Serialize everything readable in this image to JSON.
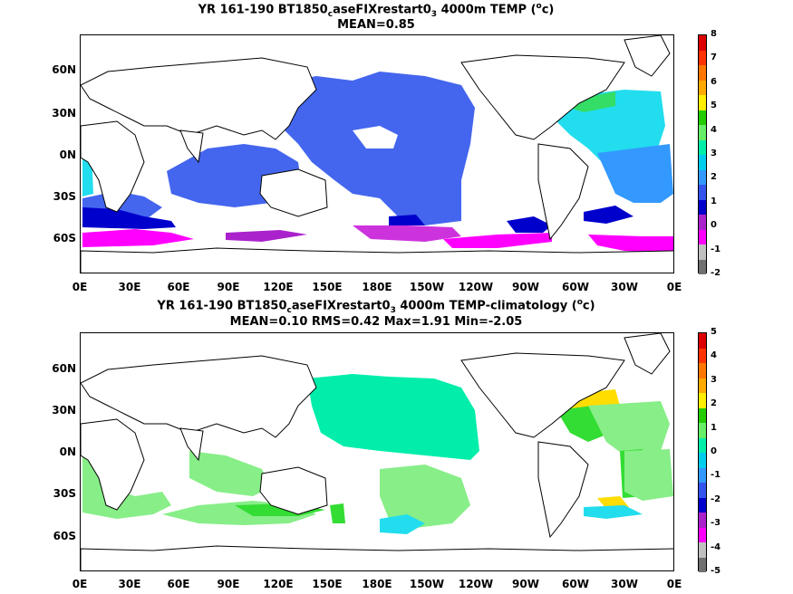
{
  "panels": [
    {
      "title_prefix": "YR 161-190 BT1850",
      "title_sub1": "c",
      "title_mid": "aseFIXrestart0",
      "title_sub2": "3",
      "title_suffix": " 4000m TEMP (",
      "title_sup": "o",
      "title_unit": "c)",
      "stats": "MEAN=0.85",
      "colorbar_labels": [
        "8",
        "7",
        "6",
        "5",
        "4",
        "3",
        "2",
        "1",
        "0",
        "-1",
        "-2"
      ]
    },
    {
      "title_prefix": "YR 161-190 BT1850",
      "title_sub1": "c",
      "title_mid": "aseFIXrestart0",
      "title_sub2": "3",
      "title_suffix": " 4000m TEMP-climatology (",
      "title_sup": "o",
      "title_unit": "c)",
      "stats": "MEAN=0.10   RMS=0.42   Max=1.91   Min=-2.05",
      "colorbar_labels": [
        "5",
        "4",
        "3",
        "2",
        "1",
        "0",
        "-1",
        "-2",
        "-3",
        "-4",
        "-5"
      ]
    }
  ],
  "lat_labels": [
    "60N",
    "30N",
    "0N",
    "30S",
    "60S"
  ],
  "lon_labels": [
    "0E",
    "30E",
    "60E",
    "90E",
    "120E",
    "150E",
    "180E",
    "150W",
    "120W",
    "90W",
    "60W",
    "30W",
    "0E"
  ],
  "colorbar_colors": [
    "#707070",
    "#c0c0c0",
    "#ff00ff",
    "#aa22cc",
    "#0000cc",
    "#3355ee",
    "#3399ff",
    "#00ccee",
    "#00eeaa",
    "#66ee66",
    "#22cc00",
    "#ffee00",
    "#ffaa00",
    "#ff7700",
    "#ff3300",
    "#dd0000"
  ],
  "chart_data": [
    {
      "type": "heatmap",
      "title": "YR 161-190 BT1850caseFIXrestart03 4000m TEMP (oc)",
      "subtitle": "MEAN=0.85",
      "x_ticks": [
        "0E",
        "30E",
        "60E",
        "90E",
        "120E",
        "150E",
        "180E",
        "150W",
        "120W",
        "90W",
        "60W",
        "30W",
        "0E"
      ],
      "y_ticks": [
        "60N",
        "30N",
        "0N",
        "30S",
        "60S"
      ],
      "colorbar_range": [
        -2,
        8
      ],
      "mean": 0.85
    },
    {
      "type": "heatmap",
      "title": "YR 161-190 BT1850caseFIXrestart03 4000m TEMP-climatology (oc)",
      "subtitle": "MEAN=0.10   RMS=0.42   Max=1.91   Min=-2.05",
      "x_ticks": [
        "0E",
        "30E",
        "60E",
        "90E",
        "120E",
        "150E",
        "180E",
        "150W",
        "120W",
        "90W",
        "60W",
        "30W",
        "0E"
      ],
      "y_ticks": [
        "60N",
        "30N",
        "0N",
        "30S",
        "60S"
      ],
      "colorbar_range": [
        -5,
        5
      ],
      "mean": 0.1,
      "rms": 0.42,
      "max": 1.91,
      "min": -2.05
    }
  ]
}
